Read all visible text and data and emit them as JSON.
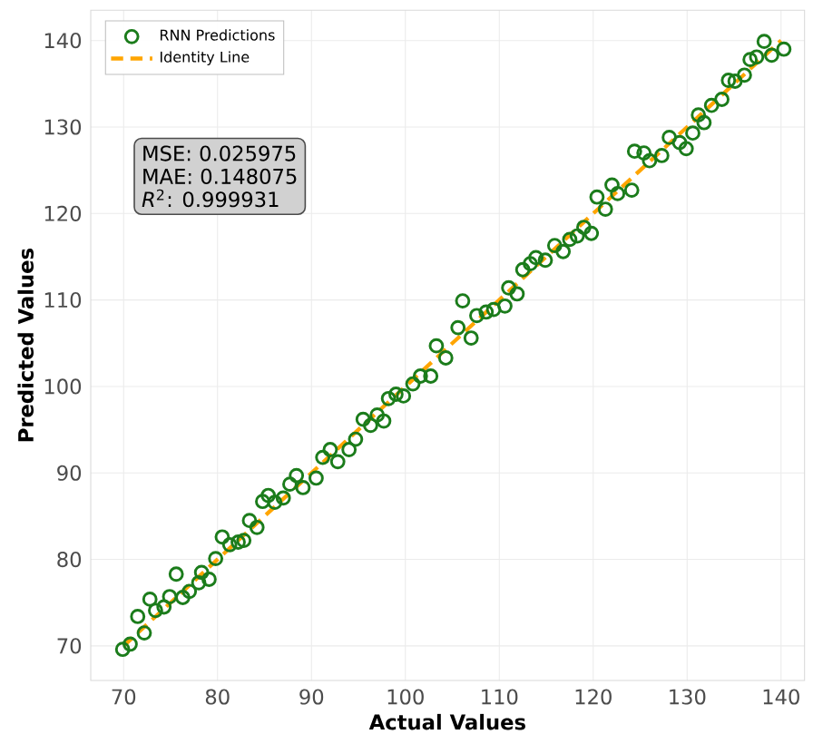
{
  "chart_data": {
    "type": "scatter",
    "xlabel": "Actual Values",
    "ylabel": "Predicted Values",
    "xlim": [
      66.5,
      142.5
    ],
    "ylim": [
      66,
      143.5
    ],
    "xticks": [
      70,
      80,
      90,
      100,
      110,
      120,
      130,
      140
    ],
    "yticks": [
      70,
      80,
      90,
      100,
      110,
      120,
      130,
      140
    ],
    "grid": true,
    "legend": "top left",
    "annotations": [
      "MSE: 0.025975",
      "MAE: 0.148075",
      "*R*$^{2}$: 0.999931"
    ],
    "series": [
      {
        "name": "RNN Predictions",
        "marker": "circle",
        "color": "#1b7c1b",
        "x": [
          69.9,
          70.7,
          71.5,
          72.2,
          72.8,
          73.4,
          74.3,
          74.9,
          75.6,
          76.3,
          77.0,
          78.0,
          78.3,
          79.1,
          79.8,
          80.5,
          81.3,
          82.2,
          82.8,
          83.4,
          84.2,
          84.8,
          85.4,
          86.1,
          87.0,
          87.7,
          88.4,
          89.1,
          90.5,
          91.2,
          92.0,
          92.8,
          94.0,
          94.7,
          95.5,
          96.3,
          97.0,
          97.7,
          98.2,
          99.0,
          99.8,
          100.8,
          101.6,
          102.7,
          103.3,
          104.3,
          105.6,
          106.1,
          107.0,
          107.6,
          108.6,
          109.4,
          110.6,
          111.0,
          111.9,
          112.5,
          113.3,
          113.9,
          114.9,
          115.9,
          116.8,
          117.5,
          118.3,
          119.0,
          119.8,
          120.4,
          121.3,
          122.0,
          122.6,
          124.1,
          124.4,
          125.4,
          126.0,
          127.3,
          128.1,
          129.2,
          129.9,
          130.6,
          131.2,
          131.8,
          132.6,
          133.7,
          134.4,
          135.1,
          136.1,
          136.7,
          137.4,
          138.2,
          139.0,
          140.3
        ],
        "values": [
          69.6,
          70.2,
          73.4,
          71.5,
          75.4,
          74.1,
          74.5,
          75.7,
          78.3,
          75.6,
          76.3,
          77.3,
          78.5,
          77.7,
          80.1,
          82.6,
          81.7,
          82.0,
          82.2,
          84.5,
          83.7,
          86.7,
          87.4,
          86.6,
          87.1,
          88.7,
          89.7,
          88.3,
          89.4,
          91.8,
          92.7,
          91.3,
          92.7,
          93.9,
          96.2,
          95.5,
          96.7,
          96.0,
          98.6,
          99.1,
          98.9,
          100.3,
          101.2,
          101.2,
          104.7,
          103.3,
          106.8,
          109.9,
          105.6,
          108.2,
          108.6,
          108.9,
          109.3,
          111.4,
          110.7,
          113.5,
          114.2,
          114.9,
          114.6,
          116.3,
          115.6,
          117.0,
          117.4,
          118.4,
          117.7,
          121.9,
          120.5,
          123.3,
          122.3,
          122.7,
          127.2,
          127.0,
          126.1,
          126.7,
          128.8,
          128.2,
          127.5,
          129.3,
          131.4,
          130.5,
          132.5,
          133.2,
          135.4,
          135.3,
          136.0,
          137.8,
          138.1,
          139.9,
          138.3,
          139.0
        ]
      },
      {
        "name": "Identity Line",
        "type": "line",
        "marker": "none",
        "line_style": "dashed",
        "color": "#ffa500",
        "x": [
          70,
          140
        ],
        "values": [
          70,
          140
        ]
      }
    ]
  }
}
